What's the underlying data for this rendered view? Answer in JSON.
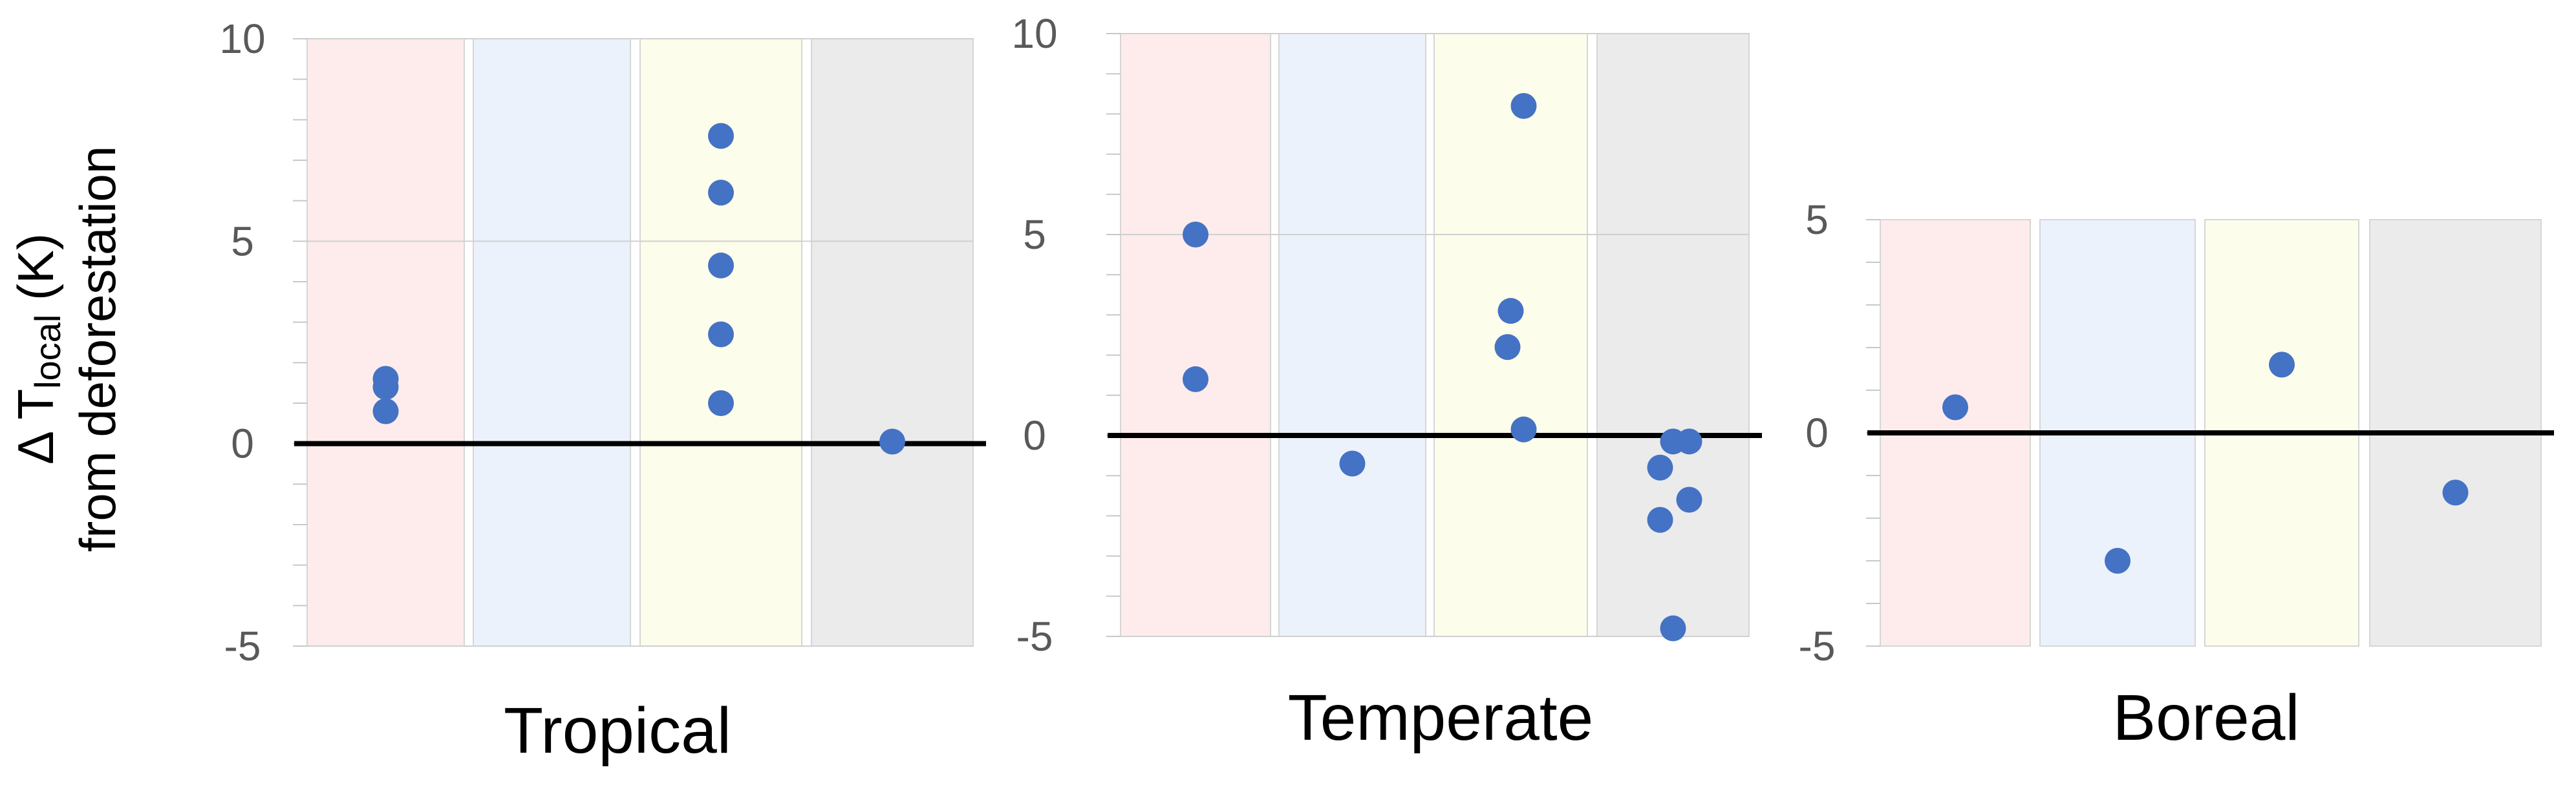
{
  "colors": {
    "background": "#ffffff",
    "point": "#4472c4",
    "zero_line": "#000000",
    "band_fills": [
      "#fdeceb",
      "#ecf2fc",
      "#fdfdeb",
      "#ebebeb"
    ]
  },
  "ylabel": {
    "line1_main": "Δ T",
    "line1_sub": "local",
    "line1_unit": " (K)",
    "line2": "from deforestation"
  },
  "chart_data": [
    {
      "type": "scatter",
      "xlabel": "Tropical",
      "ylim": [
        -5,
        10
      ],
      "yticks": [
        "-5",
        "0",
        "5",
        "10"
      ],
      "grid": "horizontal",
      "bands": 4,
      "series": [
        {
          "category": 0,
          "values": [
            1.6,
            1.4,
            0.8
          ]
        },
        {
          "category": 1,
          "values": []
        },
        {
          "category": 2,
          "values": [
            7.6,
            6.2,
            4.4,
            2.7,
            1.0
          ]
        },
        {
          "category": 3,
          "values": [
            0.05
          ]
        }
      ]
    },
    {
      "type": "scatter",
      "xlabel": "Temperate",
      "ylim": [
        -5,
        10
      ],
      "yticks": [
        "-5",
        "0",
        "5",
        "10"
      ],
      "grid": "horizontal",
      "bands": 4,
      "series": [
        {
          "category": 0,
          "values": [
            5.0,
            1.4
          ]
        },
        {
          "category": 1,
          "values": [
            -0.7
          ]
        },
        {
          "category": 2,
          "values": [
            8.2,
            3.1,
            2.2,
            0.15
          ]
        },
        {
          "category": 3,
          "values": [
            -0.15,
            -0.15,
            -0.8,
            -1.6,
            -2.1,
            -4.8
          ]
        }
      ]
    },
    {
      "type": "scatter",
      "xlabel": "Boreal",
      "ylim": [
        -5,
        5
      ],
      "yticks": [
        "-5",
        "0",
        "5"
      ],
      "grid": "none",
      "bands": 4,
      "series": [
        {
          "category": 0,
          "values": [
            0.6
          ]
        },
        {
          "category": 1,
          "values": [
            -3.0
          ]
        },
        {
          "category": 2,
          "values": [
            1.6
          ]
        },
        {
          "category": 3,
          "values": [
            -1.4
          ]
        }
      ]
    }
  ]
}
